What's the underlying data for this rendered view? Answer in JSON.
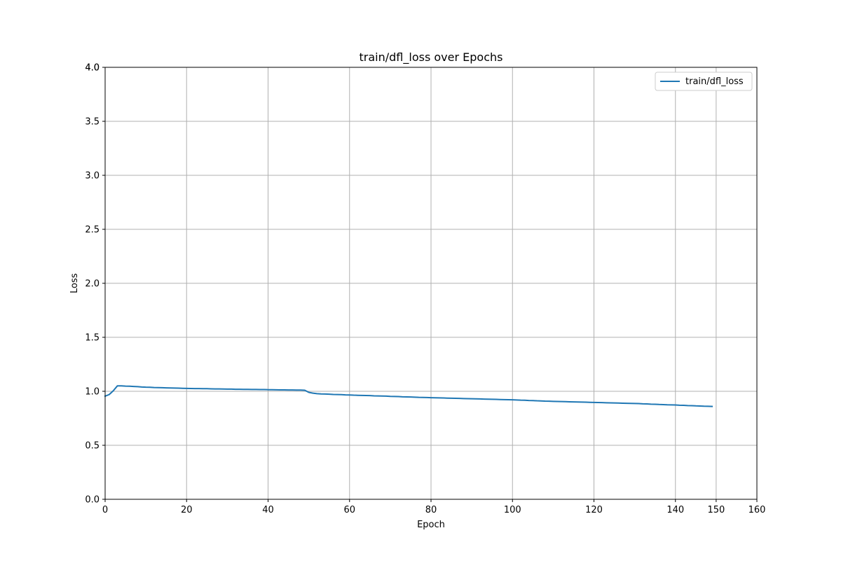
{
  "chart_data": {
    "type": "line",
    "title": "train/dfl_loss over Epochs",
    "xlabel": "Epoch",
    "ylabel": "Loss",
    "xlim": [
      0,
      160
    ],
    "ylim": [
      0,
      4.0
    ],
    "grid": true,
    "legend_position": "top-right",
    "x_ticks": [
      "0",
      "20",
      "40",
      "60",
      "80",
      "100",
      "120",
      "140",
      "150",
      "160"
    ],
    "y_ticks": [
      "0.0",
      "0.5",
      "1.0",
      "1.5",
      "2.0",
      "2.5",
      "3.0",
      "3.5",
      "4.0",
      "4.0"
    ],
    "series": [
      {
        "name": "train/dfl_loss",
        "color": "#1f77b4",
        "points": [
          [
            0,
            0.955
          ],
          [
            1,
            0.97
          ],
          [
            2,
            1.005
          ],
          [
            3,
            1.05
          ],
          [
            4,
            1.05
          ],
          [
            5,
            1.048
          ],
          [
            6,
            1.047
          ],
          [
            7,
            1.045
          ],
          [
            8,
            1.043
          ],
          [
            9,
            1.04
          ],
          [
            10,
            1.038
          ],
          [
            11,
            1.037
          ],
          [
            12,
            1.035
          ],
          [
            13,
            1.034
          ],
          [
            14,
            1.033
          ],
          [
            15,
            1.032
          ],
          [
            16,
            1.031
          ],
          [
            17,
            1.03
          ],
          [
            18,
            1.029
          ],
          [
            19,
            1.028
          ],
          [
            20,
            1.027
          ],
          [
            21,
            1.026
          ],
          [
            22,
            1.025
          ],
          [
            23,
            1.025
          ],
          [
            24,
            1.024
          ],
          [
            25,
            1.024
          ],
          [
            26,
            1.023
          ],
          [
            27,
            1.022
          ],
          [
            28,
            1.022
          ],
          [
            29,
            1.021
          ],
          [
            30,
            1.02
          ],
          [
            31,
            1.02
          ],
          [
            32,
            1.019
          ],
          [
            33,
            1.019
          ],
          [
            34,
            1.018
          ],
          [
            35,
            1.018
          ],
          [
            36,
            1.017
          ],
          [
            37,
            1.017
          ],
          [
            38,
            1.016
          ],
          [
            39,
            1.016
          ],
          [
            40,
            1.015
          ],
          [
            41,
            1.015
          ],
          [
            42,
            1.014
          ],
          [
            43,
            1.013
          ],
          [
            44,
            1.013
          ],
          [
            45,
            1.012
          ],
          [
            46,
            1.012
          ],
          [
            47,
            1.011
          ],
          [
            48,
            1.011
          ],
          [
            49,
            1.01
          ],
          [
            50,
            0.99
          ],
          [
            51,
            0.983
          ],
          [
            52,
            0.978
          ],
          [
            53,
            0.976
          ],
          [
            54,
            0.975
          ],
          [
            55,
            0.973
          ],
          [
            56,
            0.971
          ],
          [
            57,
            0.97
          ],
          [
            58,
            0.969
          ],
          [
            59,
            0.967
          ],
          [
            60,
            0.966
          ],
          [
            61,
            0.964
          ],
          [
            62,
            0.963
          ],
          [
            63,
            0.962
          ],
          [
            64,
            0.961
          ],
          [
            65,
            0.96
          ],
          [
            66,
            0.958
          ],
          [
            67,
            0.957
          ],
          [
            68,
            0.956
          ],
          [
            69,
            0.955
          ],
          [
            70,
            0.953
          ],
          [
            71,
            0.952
          ],
          [
            72,
            0.951
          ],
          [
            73,
            0.949
          ],
          [
            74,
            0.948
          ],
          [
            75,
            0.947
          ],
          [
            76,
            0.946
          ],
          [
            77,
            0.944
          ],
          [
            78,
            0.943
          ],
          [
            79,
            0.942
          ],
          [
            80,
            0.941
          ],
          [
            81,
            0.94
          ],
          [
            82,
            0.939
          ],
          [
            83,
            0.938
          ],
          [
            84,
            0.937
          ],
          [
            85,
            0.936
          ],
          [
            86,
            0.935
          ],
          [
            87,
            0.934
          ],
          [
            88,
            0.933
          ],
          [
            89,
            0.932
          ],
          [
            90,
            0.931
          ],
          [
            91,
            0.93
          ],
          [
            92,
            0.929
          ],
          [
            93,
            0.928
          ],
          [
            94,
            0.927
          ],
          [
            95,
            0.926
          ],
          [
            96,
            0.925
          ],
          [
            97,
            0.924
          ],
          [
            98,
            0.923
          ],
          [
            99,
            0.922
          ],
          [
            100,
            0.921
          ],
          [
            101,
            0.92
          ],
          [
            102,
            0.918
          ],
          [
            103,
            0.917
          ],
          [
            104,
            0.915
          ],
          [
            105,
            0.914
          ],
          [
            106,
            0.912
          ],
          [
            107,
            0.911
          ],
          [
            108,
            0.909
          ],
          [
            109,
            0.908
          ],
          [
            110,
            0.907
          ],
          [
            111,
            0.906
          ],
          [
            112,
            0.905
          ],
          [
            113,
            0.904
          ],
          [
            114,
            0.903
          ],
          [
            115,
            0.902
          ],
          [
            116,
            0.901
          ],
          [
            117,
            0.9
          ],
          [
            118,
            0.899
          ],
          [
            119,
            0.898
          ],
          [
            120,
            0.897
          ],
          [
            121,
            0.896
          ],
          [
            122,
            0.895
          ],
          [
            123,
            0.894
          ],
          [
            124,
            0.893
          ],
          [
            125,
            0.892
          ],
          [
            126,
            0.891
          ],
          [
            127,
            0.89
          ],
          [
            128,
            0.889
          ],
          [
            129,
            0.888
          ],
          [
            130,
            0.887
          ],
          [
            131,
            0.886
          ],
          [
            132,
            0.884
          ],
          [
            133,
            0.883
          ],
          [
            134,
            0.881
          ],
          [
            135,
            0.88
          ],
          [
            136,
            0.878
          ],
          [
            137,
            0.877
          ],
          [
            138,
            0.875
          ],
          [
            139,
            0.874
          ],
          [
            140,
            0.873
          ],
          [
            141,
            0.871
          ],
          [
            142,
            0.87
          ],
          [
            143,
            0.868
          ],
          [
            144,
            0.867
          ],
          [
            145,
            0.865
          ],
          [
            146,
            0.864
          ],
          [
            147,
            0.862
          ],
          [
            148,
            0.861
          ],
          [
            149,
            0.86
          ]
        ]
      }
    ]
  }
}
